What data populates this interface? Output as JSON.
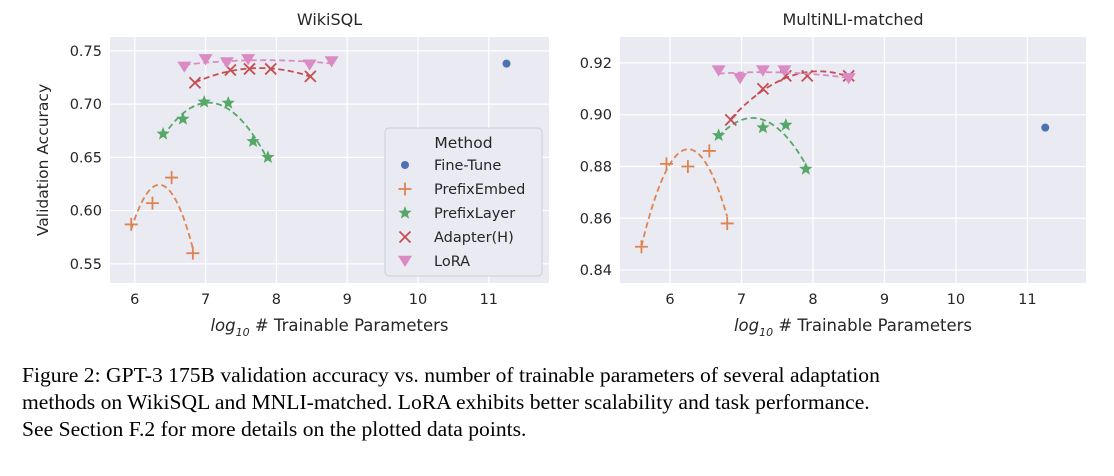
{
  "chart_data": [
    {
      "type": "scatter",
      "title": "WikiSQL",
      "ylabel": "Validation Accuracy",
      "xlabel_parts": [
        "log",
        "10",
        " # Trainable Parameters"
      ],
      "xlim": [
        5.65,
        11.85
      ],
      "ylim": [
        0.532,
        0.763
      ],
      "xticks": [
        6,
        7,
        8,
        9,
        10,
        11
      ],
      "yticks": [
        0.55,
        0.6,
        0.65,
        0.7,
        0.75
      ],
      "ytick_labels": [
        "0.55",
        "0.60",
        "0.65",
        "0.70",
        "0.75"
      ],
      "grid": true,
      "legend": {
        "title": "Method",
        "position": "right",
        "entries": [
          "Fine-Tune",
          "PrefixEmbed",
          "PrefixLayer",
          "Adapter(H)",
          "LoRA"
        ]
      },
      "series": [
        {
          "name": "Fine-Tune",
          "color": "#4c72b0",
          "marker": "circle",
          "fit": false,
          "points": [
            [
              11.25,
              0.738
            ]
          ]
        },
        {
          "name": "PrefixEmbed",
          "color": "#dd8452",
          "marker": "plus",
          "fit": true,
          "points": [
            [
              5.95,
              0.587
            ],
            [
              6.25,
              0.607
            ],
            [
              6.52,
              0.631
            ],
            [
              6.82,
              0.56
            ]
          ]
        },
        {
          "name": "PrefixLayer",
          "color": "#55a868",
          "marker": "star",
          "fit": true,
          "points": [
            [
              6.4,
              0.672
            ],
            [
              6.68,
              0.686
            ],
            [
              6.98,
              0.702
            ],
            [
              7.32,
              0.701
            ],
            [
              7.67,
              0.665
            ],
            [
              7.88,
              0.65
            ]
          ]
        },
        {
          "name": "Adapter(H)",
          "color": "#c44e52",
          "marker": "x",
          "fit": true,
          "points": [
            [
              6.85,
              0.72
            ],
            [
              7.35,
              0.732
            ],
            [
              7.62,
              0.733
            ],
            [
              7.92,
              0.733
            ],
            [
              8.48,
              0.726
            ]
          ]
        },
        {
          "name": "LoRA",
          "color": "#da8bc3",
          "marker": "tri-down",
          "fit": true,
          "points": [
            [
              6.7,
              0.735
            ],
            [
              7.0,
              0.742
            ],
            [
              7.3,
              0.739
            ],
            [
              7.6,
              0.742
            ],
            [
              8.47,
              0.737
            ],
            [
              8.78,
              0.74
            ]
          ]
        }
      ]
    },
    {
      "type": "scatter",
      "title": "MultiNLI-matched",
      "ylabel": "",
      "xlabel_parts": [
        "log",
        "10",
        " # Trainable Parameters"
      ],
      "xlim": [
        5.3,
        11.82
      ],
      "ylim": [
        0.835,
        0.93
      ],
      "xticks": [
        6,
        7,
        8,
        9,
        10,
        11
      ],
      "yticks": [
        0.84,
        0.86,
        0.88,
        0.9,
        0.92
      ],
      "ytick_labels": [
        "0.84",
        "0.86",
        "0.88",
        "0.90",
        "0.92"
      ],
      "grid": true,
      "series": [
        {
          "name": "Fine-Tune",
          "color": "#4c72b0",
          "marker": "circle",
          "fit": false,
          "points": [
            [
              11.25,
              0.895
            ]
          ]
        },
        {
          "name": "PrefixEmbed",
          "color": "#dd8452",
          "marker": "plus",
          "fit": true,
          "points": [
            [
              5.6,
              0.849
            ],
            [
              5.95,
              0.881
            ],
            [
              6.25,
              0.88
            ],
            [
              6.55,
              0.886
            ],
            [
              6.8,
              0.858
            ]
          ]
        },
        {
          "name": "PrefixLayer",
          "color": "#55a868",
          "marker": "star",
          "fit": true,
          "points": [
            [
              6.68,
              0.892
            ],
            [
              7.3,
              0.895
            ],
            [
              7.62,
              0.896
            ],
            [
              7.9,
              0.879
            ]
          ]
        },
        {
          "name": "Adapter(H)",
          "color": "#c44e52",
          "marker": "x",
          "fit": true,
          "points": [
            [
              6.85,
              0.898
            ],
            [
              7.3,
              0.91
            ],
            [
              7.62,
              0.915
            ],
            [
              7.92,
              0.915
            ],
            [
              8.5,
              0.915
            ]
          ]
        },
        {
          "name": "LoRA",
          "color": "#da8bc3",
          "marker": "tri-down",
          "fit": true,
          "points": [
            [
              6.68,
              0.917
            ],
            [
              6.98,
              0.914
            ],
            [
              7.3,
              0.917
            ],
            [
              7.6,
              0.917
            ],
            [
              8.5,
              0.914
            ]
          ]
        }
      ]
    }
  ],
  "caption": {
    "lines": [
      "Figure 2: GPT-3 175B validation accuracy vs. number of trainable parameters of several adaptation",
      "methods on WikiSQL and MNLI-matched. LoRA exhibits better scalability and task performance.",
      "See Section F.2 for more details on the plotted data points."
    ]
  }
}
